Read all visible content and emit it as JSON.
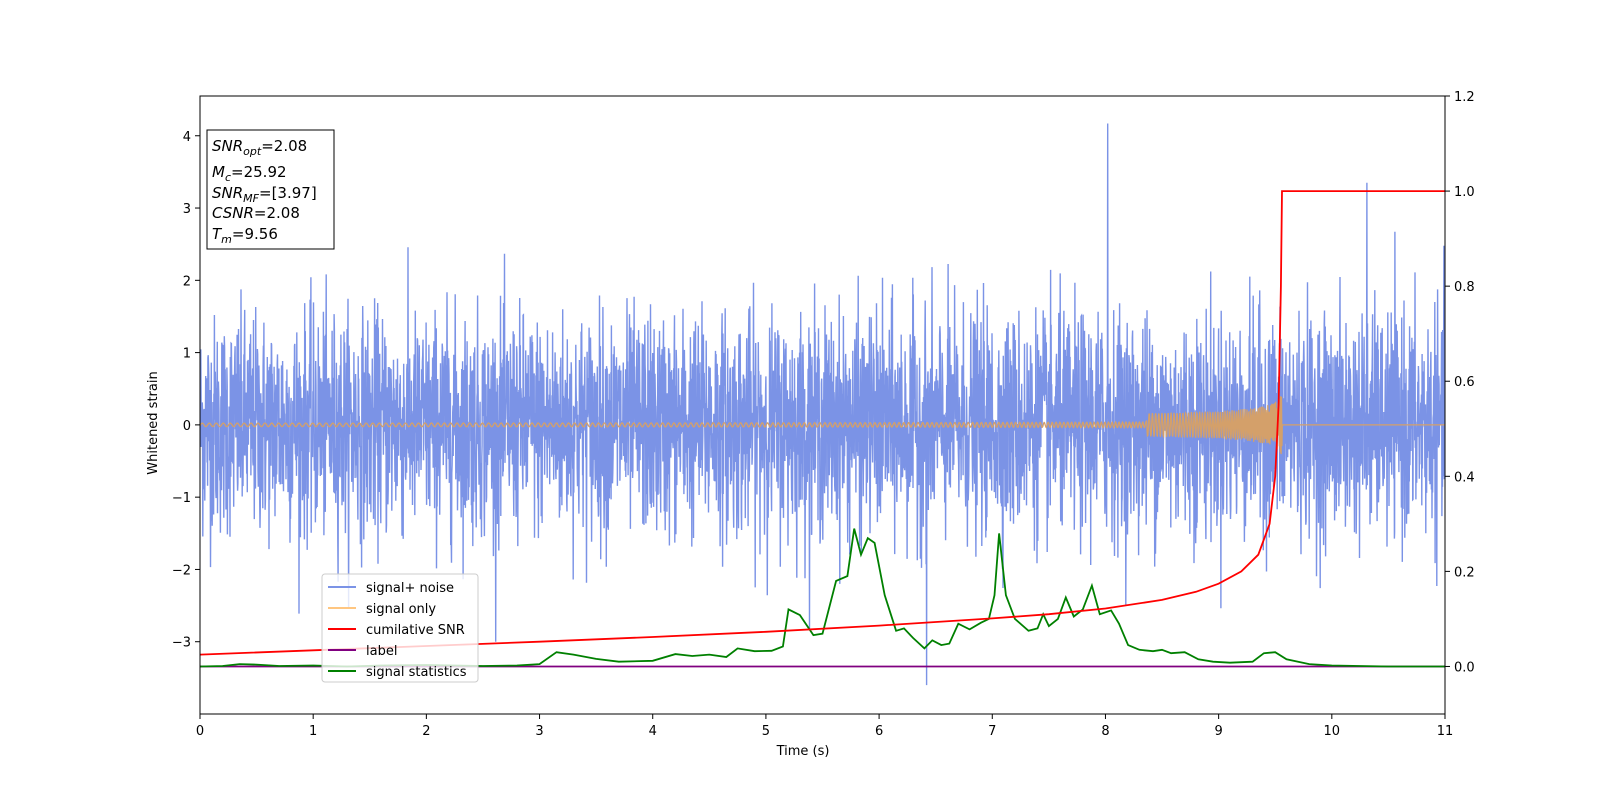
{
  "chart_data": {
    "type": "line",
    "xlabel": "Time (s)",
    "ylabel": "Whitened strain",
    "xlim": [
      0,
      11
    ],
    "ylim": [
      -4,
      4.55
    ],
    "y2lim": [
      -0.1,
      1.2
    ],
    "xticks": [
      "0",
      "1",
      "2",
      "3",
      "4",
      "5",
      "6",
      "7",
      "8",
      "9",
      "10",
      "11"
    ],
    "yticks": [
      "−3",
      "−2",
      "−1",
      "0",
      "1",
      "2",
      "3",
      "4"
    ],
    "y2ticks": [
      "0.0",
      "0.2",
      "0.4",
      "0.6",
      "0.8",
      "1.0",
      "1.2"
    ],
    "grid": false,
    "legend_position": "lower-left",
    "info_box": {
      "lines": [
        {
          "sym": "SNR",
          "sub": "opt",
          "value": "=2.08"
        },
        {
          "sym": "M",
          "sub": "c",
          "value": "=25.92"
        },
        {
          "sym": "SNR",
          "sub": "MF",
          "value": "=[3.97]"
        },
        {
          "sym": "CSNR",
          "sub": "",
          "value": "=2.08"
        },
        {
          "sym": "T",
          "sub": "m",
          "value": "=9.56"
        }
      ]
    },
    "series": [
      {
        "name": "signal+ noise",
        "color": "#7b93e6",
        "axis": "left",
        "description": "whitened noise, std ~0.75, x 0-11",
        "noise_std": 0.75,
        "notable_peaks": [
          {
            "x": 8.02,
            "y": 4.17
          },
          {
            "x": 10.31,
            "y": 3.35
          },
          {
            "x": 6.42,
            "y": -3.6
          }
        ]
      },
      {
        "name": "signal only",
        "color": "#d4a06a",
        "axis": "left",
        "chirp_end_x": 9.56,
        "chirp_max_amplitude": 0.45
      },
      {
        "name": "cumilative SNR",
        "color": "#ff0000",
        "axis": "right",
        "points": [
          [
            0,
            0.025
          ],
          [
            1,
            0.034
          ],
          [
            2,
            0.043
          ],
          [
            3,
            0.052
          ],
          [
            4,
            0.062
          ],
          [
            5,
            0.073
          ],
          [
            6,
            0.086
          ],
          [
            7,
            0.101
          ],
          [
            7.5,
            0.11
          ],
          [
            8,
            0.122
          ],
          [
            8.5,
            0.14
          ],
          [
            8.8,
            0.157
          ],
          [
            9.0,
            0.174
          ],
          [
            9.2,
            0.2
          ],
          [
            9.35,
            0.235
          ],
          [
            9.45,
            0.3
          ],
          [
            9.5,
            0.4
          ],
          [
            9.53,
            0.55
          ],
          [
            9.55,
            0.8
          ],
          [
            9.56,
            1.0
          ],
          [
            11,
            1.0
          ]
        ]
      },
      {
        "name": "label",
        "color": "#800080",
        "axis": "right",
        "points": [
          [
            0,
            0.0
          ],
          [
            11,
            0.0
          ]
        ]
      },
      {
        "name": "signal statistics",
        "color": "#008000",
        "axis": "right",
        "points": [
          [
            0,
            0.0
          ],
          [
            0.2,
            0.001
          ],
          [
            0.35,
            0.005
          ],
          [
            0.5,
            0.004
          ],
          [
            0.7,
            0.001
          ],
          [
            1.0,
            0.002
          ],
          [
            1.3,
            0.0
          ],
          [
            1.6,
            0.002
          ],
          [
            2.0,
            0.003
          ],
          [
            2.5,
            0.001
          ],
          [
            2.8,
            0.002
          ],
          [
            3.0,
            0.005
          ],
          [
            3.15,
            0.03
          ],
          [
            3.3,
            0.025
          ],
          [
            3.5,
            0.016
          ],
          [
            3.7,
            0.01
          ],
          [
            4.0,
            0.012
          ],
          [
            4.2,
            0.026
          ],
          [
            4.35,
            0.022
          ],
          [
            4.5,
            0.025
          ],
          [
            4.65,
            0.02
          ],
          [
            4.75,
            0.038
          ],
          [
            4.9,
            0.032
          ],
          [
            5.05,
            0.033
          ],
          [
            5.15,
            0.042
          ],
          [
            5.2,
            0.12
          ],
          [
            5.3,
            0.108
          ],
          [
            5.42,
            0.066
          ],
          [
            5.5,
            0.069
          ],
          [
            5.62,
            0.18
          ],
          [
            5.72,
            0.19
          ],
          [
            5.78,
            0.29
          ],
          [
            5.84,
            0.235
          ],
          [
            5.9,
            0.27
          ],
          [
            5.96,
            0.26
          ],
          [
            6.05,
            0.15
          ],
          [
            6.15,
            0.075
          ],
          [
            6.22,
            0.08
          ],
          [
            6.3,
            0.06
          ],
          [
            6.4,
            0.038
          ],
          [
            6.47,
            0.055
          ],
          [
            6.55,
            0.045
          ],
          [
            6.62,
            0.048
          ],
          [
            6.7,
            0.09
          ],
          [
            6.8,
            0.078
          ],
          [
            6.9,
            0.092
          ],
          [
            6.97,
            0.1
          ],
          [
            7.02,
            0.15
          ],
          [
            7.06,
            0.28
          ],
          [
            7.12,
            0.15
          ],
          [
            7.2,
            0.1
          ],
          [
            7.32,
            0.075
          ],
          [
            7.4,
            0.08
          ],
          [
            7.45,
            0.11
          ],
          [
            7.5,
            0.085
          ],
          [
            7.58,
            0.1
          ],
          [
            7.65,
            0.145
          ],
          [
            7.72,
            0.105
          ],
          [
            7.8,
            0.12
          ],
          [
            7.88,
            0.17
          ],
          [
            7.95,
            0.11
          ],
          [
            8.05,
            0.118
          ],
          [
            8.12,
            0.09
          ],
          [
            8.2,
            0.045
          ],
          [
            8.3,
            0.035
          ],
          [
            8.42,
            0.032
          ],
          [
            8.5,
            0.035
          ],
          [
            8.58,
            0.028
          ],
          [
            8.7,
            0.03
          ],
          [
            8.82,
            0.015
          ],
          [
            8.95,
            0.01
          ],
          [
            9.1,
            0.008
          ],
          [
            9.3,
            0.01
          ],
          [
            9.4,
            0.028
          ],
          [
            9.5,
            0.03
          ],
          [
            9.6,
            0.015
          ],
          [
            9.8,
            0.005
          ],
          [
            10.0,
            0.002
          ],
          [
            10.5,
            0.0
          ],
          [
            11,
            0.0
          ]
        ]
      }
    ]
  }
}
